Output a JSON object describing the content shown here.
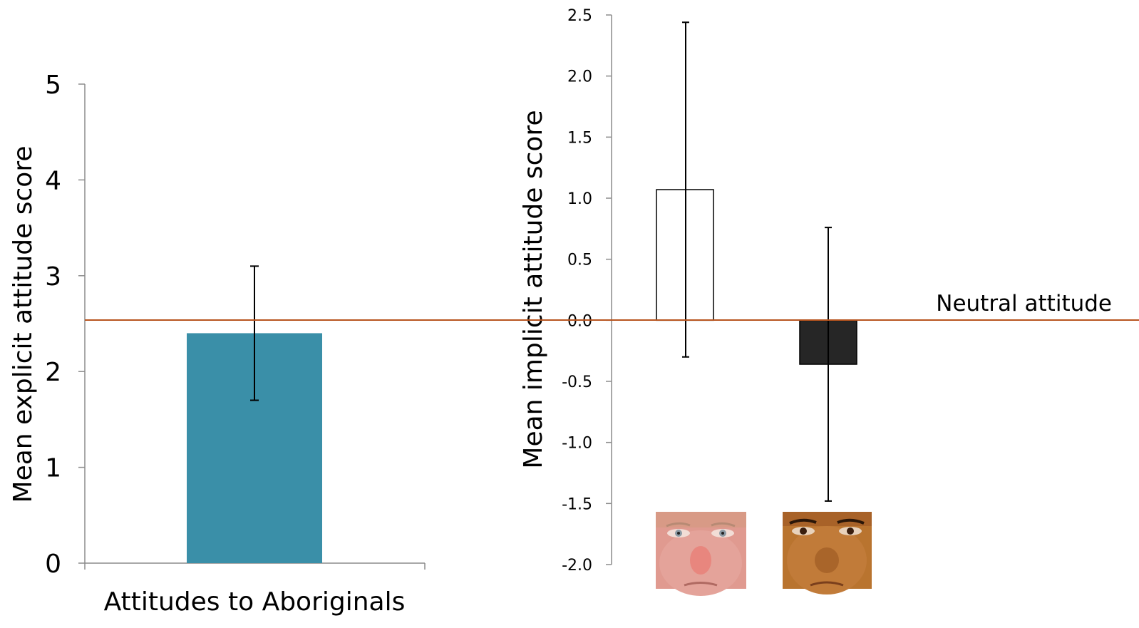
{
  "chart_data": [
    {
      "type": "bar",
      "categories": [
        "Attitudes to Aboriginals"
      ],
      "values": [
        2.4
      ],
      "error_bars": [
        {
          "low": 1.7,
          "high": 3.1
        }
      ],
      "ylabel": "Mean explicit attitude score",
      "ylim": [
        0,
        5
      ],
      "yticks": [
        "0",
        "1",
        "2",
        "3",
        "4",
        "5"
      ],
      "bar_color": "#3a8fa8",
      "grid": false
    },
    {
      "type": "bar",
      "categories": [
        "White face",
        "Aboriginal face"
      ],
      "values": [
        1.07,
        -0.36
      ],
      "error_bars": [
        {
          "low": -0.3,
          "high": 2.44
        },
        {
          "low": -1.48,
          "high": 0.76
        }
      ],
      "ylabel": "Mean implicit attitude score",
      "ylim": [
        -2.0,
        2.5
      ],
      "yticks": [
        "-2.0",
        "-1.5",
        "-1.0",
        "-0.5",
        "0.0",
        "0.5",
        "1.0",
        "1.5",
        "2.0",
        "2.5"
      ],
      "bar_fill": [
        "#ffffff",
        "#262626"
      ],
      "grid": false
    }
  ],
  "reference_line": {
    "label": "Neutral attitude",
    "color": "#b8541e"
  }
}
